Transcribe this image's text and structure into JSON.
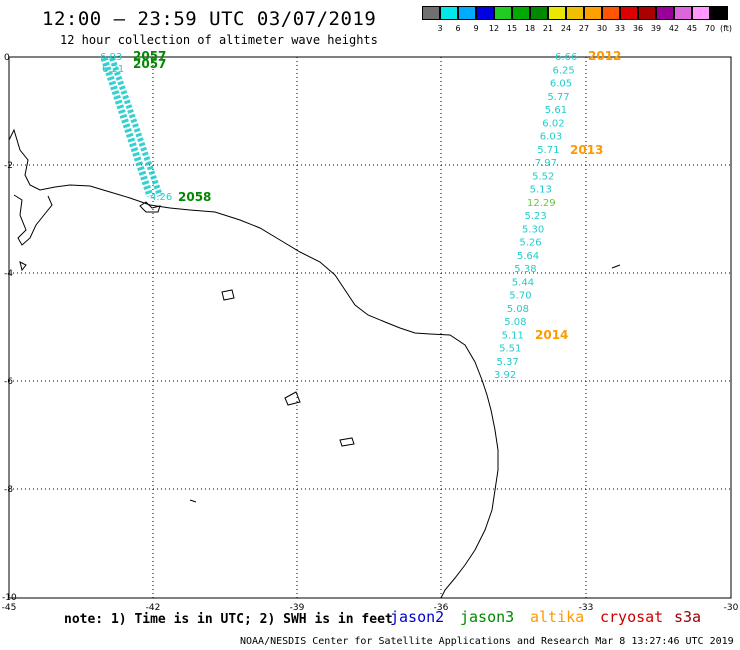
{
  "title": "12:00 – 23:59 UTC 03/07/2019",
  "subtitle": "12 hour collection of altimeter wave heights",
  "note": "note: 1) Time is in UTC; 2) SWH is in feet",
  "credit": "NOAA/NESDIS Center for Satellite Applications and Research   Mar  8 13:27:46 UTC 2019",
  "colorbar": {
    "labels": [
      "3",
      "6",
      "9",
      "12",
      "15",
      "18",
      "21",
      "24",
      "27",
      "30",
      "33",
      "36",
      "39",
      "42",
      "45",
      "70"
    ],
    "unit": "(ft)",
    "colors": [
      "#707070",
      "#00e8e8",
      "#00aaff",
      "#0000e0",
      "#22cc22",
      "#00aa00",
      "#008800",
      "#e8e800",
      "#f0c000",
      "#ffa000",
      "#ff5500",
      "#dd0000",
      "#aa0000",
      "#990099",
      "#dd66dd",
      "#ff99ff",
      "#000000"
    ]
  },
  "legend": [
    {
      "name": "jason2",
      "color": "#0000cc"
    },
    {
      "name": "jason3",
      "color": "#008800"
    },
    {
      "name": "altika",
      "color": "#ff9900"
    },
    {
      "name": "cryosat",
      "color": "#cc0000"
    },
    {
      "name": "s3a",
      "color": "#990000"
    }
  ],
  "axes": {
    "x_ticks": [
      "-45",
      "-42",
      "-39",
      "-36",
      "-33",
      "-30"
    ],
    "y_ticks": [
      "0",
      "-2",
      "-4",
      "-6",
      "-8",
      "-10"
    ]
  },
  "track_east": {
    "values": [
      "6.66",
      "6.25",
      "6.05",
      "5.77",
      "5.61",
      "6.02",
      "6.03",
      "5.71",
      "7.97",
      "5.52",
      "5.13",
      "12.29",
      "5.23",
      "5.30",
      "5.26",
      "5.64",
      "5.38",
      "5.44",
      "5.70",
      "5.08",
      "5.08",
      "5.11",
      "5.51",
      "5.37",
      "3.92"
    ],
    "times": [
      "2012",
      "2013",
      "2014"
    ]
  },
  "track_west": {
    "top_values": [
      "6.03",
      "6.21"
    ],
    "bottom_value": "4.26",
    "times": [
      "2057",
      "2057",
      "2058"
    ]
  }
}
